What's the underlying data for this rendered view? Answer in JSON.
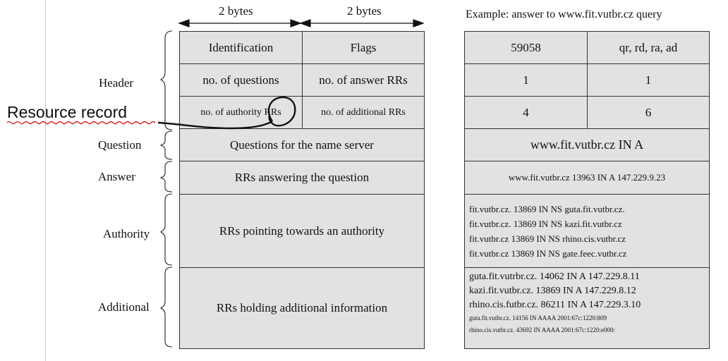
{
  "bytes": {
    "left": "2 bytes",
    "right": "2 bytes"
  },
  "example_title": "Example: answer to www.fit.vutbr.cz query",
  "sections": {
    "header": "Header",
    "question": "Question",
    "answer": "Answer",
    "authority": "Authority",
    "additional": "Additional"
  },
  "annotation": "Resource record",
  "format": {
    "identification": "Identification",
    "flags": "Flags",
    "num_questions": "no. of questions",
    "num_answer_rrs": "no. of answer RRs",
    "num_authority_prefix": "no. of authority",
    "num_authority_rrs": "RRs",
    "num_additional_rrs": "no. of additional RRs",
    "questions": "Questions for the name server",
    "answers": "RRs answering the question",
    "authority": "RRs pointing towards an authority",
    "additional": "RRs holding additional information"
  },
  "example": {
    "id": "59058",
    "flags": "qr, rd, ra, ad",
    "qdcount": "1",
    "ancount": "1",
    "nscount": "4",
    "arcount": "6",
    "question": "www.fit.vutbr.cz IN A",
    "answer": "www.fit.vutbr.cz 13963 IN A 147.229.9.23",
    "authority": [
      "fit.vutbr.cz. 13869 IN NS guta.fit.vutbr.cz.",
      "fit.vutbr.cz. 13869 IN NS kazi.fit.vutbr.cz",
      "fit.vutbr.cz 13869 IN NS rhino.cis.vutbr.cz",
      "fit.vutbr.cz 13869 IN NS gate.feec.vutbr.cz"
    ],
    "additional": [
      "guta.fit.vutrbr.cz. 14062 IN A 147.229.8.11",
      "kazi.fit.vutbr.cz. 13869 IN A 147.229.8.12",
      "rhino.cis.futbr.cz. 86211 IN A 147.229.3.10"
    ],
    "additional_small": [
      "guta.fit.vutbr.cz. 14156 IN AAAA 2001:67c:1220:809",
      "rhino.cis.vutbr.cz. 43692 IN AAAA 2001:67c:1220:e000:"
    ]
  }
}
